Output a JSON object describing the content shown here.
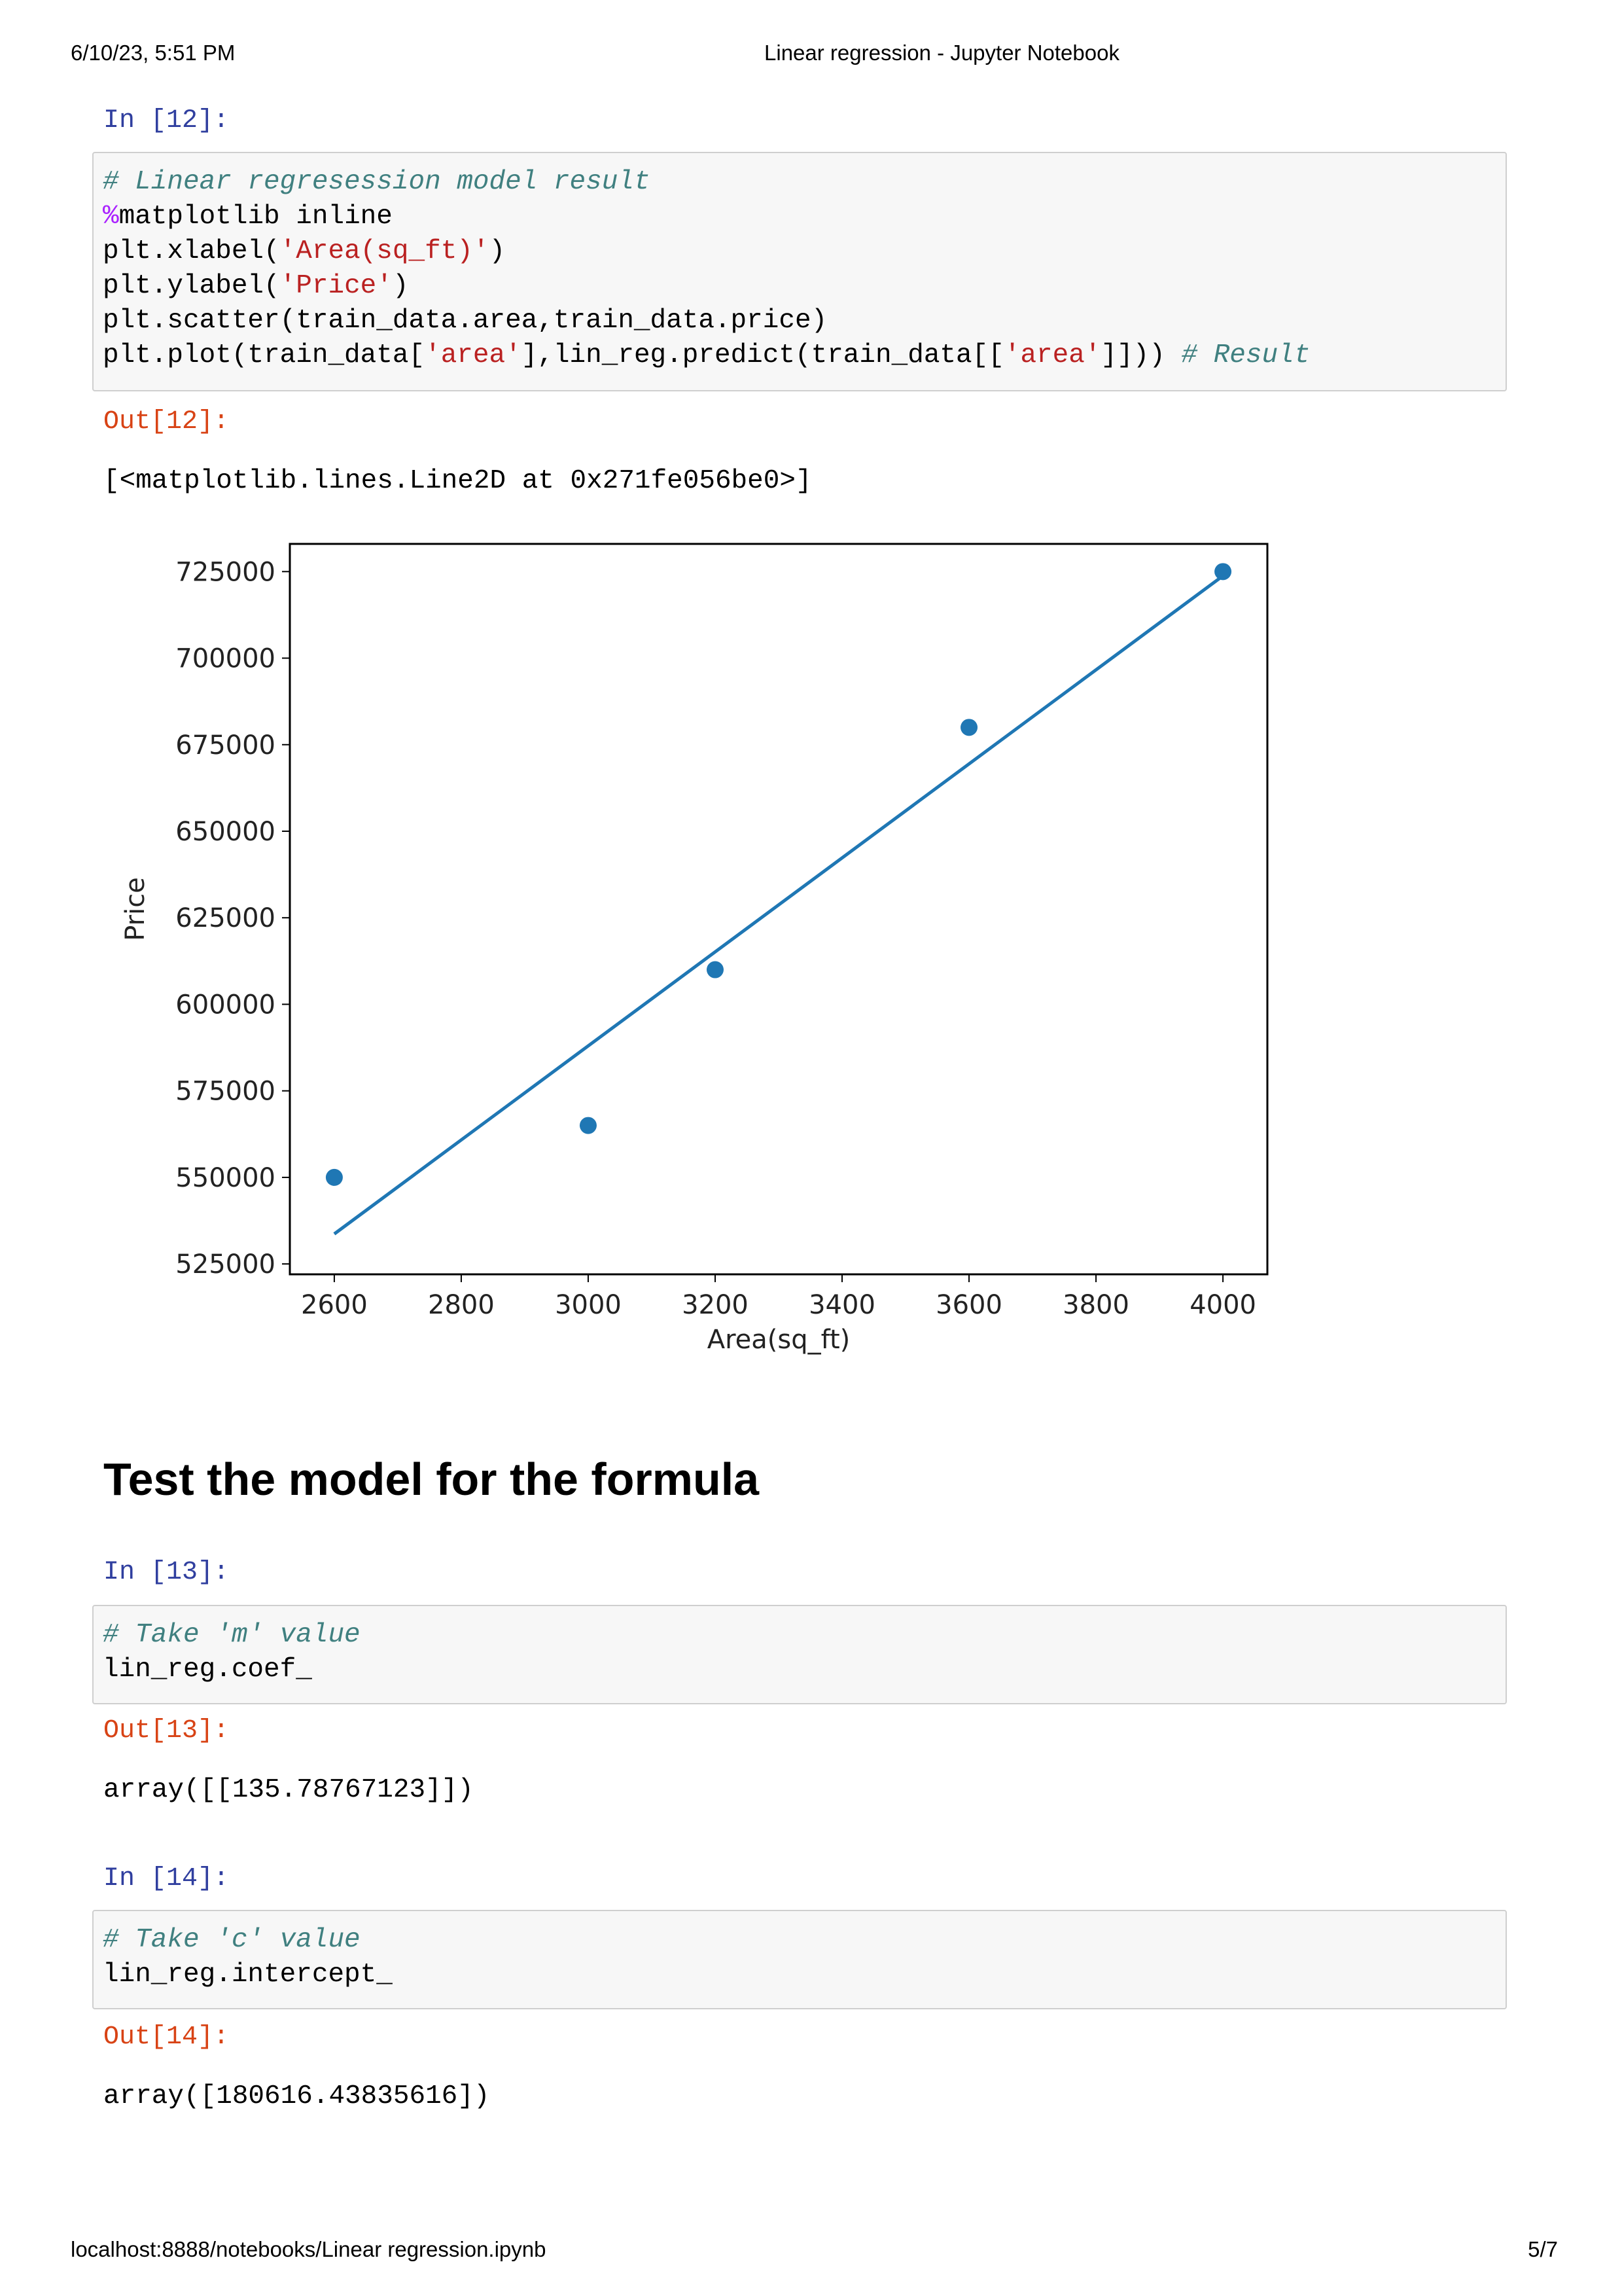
{
  "header": {
    "datetime": "6/10/23, 5:51 PM",
    "title": "Linear regression - Jupyter Notebook"
  },
  "footer": {
    "url": "localhost:8888/notebooks/Linear regression.ipynb",
    "page": "5/7"
  },
  "cells": {
    "c12": {
      "in_prompt": "In [12]:",
      "out_prompt": "Out[12]:",
      "lines": {
        "l1": "# Linear regresession model result",
        "l2_magic": "%",
        "l2_rest": "matplotlib inline",
        "l3_a": "plt.xlabel(",
        "l3_str": "'Area(sq_ft)'",
        "l3_b": ")",
        "l4_a": "plt.ylabel(",
        "l4_str": "'Price'",
        "l4_b": ")",
        "l5": "plt.scatter(train_data.area,train_data.price)",
        "l6_a": "plt.plot(train_data[",
        "l6_str1": "'area'",
        "l6_b": "],lin_reg.predict(train_data[[",
        "l6_str2": "'area'",
        "l6_c": "]])) ",
        "l6_comment": "# Result"
      },
      "output": "[<matplotlib.lines.Line2D at 0x271fe056be0>]"
    },
    "heading": "Test the model for the formula",
    "c13": {
      "in_prompt": "In [13]:",
      "out_prompt": "Out[13]:",
      "lines": {
        "l1": "# Take 'm' value",
        "l2": "lin_reg.coef_"
      },
      "output": "array([[135.78767123]])"
    },
    "c14": {
      "in_prompt": "In [14]:",
      "out_prompt": "Out[14]:",
      "lines": {
        "l1": "# Take 'c' value",
        "l2": "lin_reg.intercept_"
      },
      "output": "array([180616.43835616])"
    }
  },
  "chart_data": {
    "type": "scatter",
    "xlabel": "Area(sq_ft)",
    "ylabel": "Price",
    "xlim": [
      2530,
      4070
    ],
    "ylim": [
      522000,
      733000
    ],
    "xticks": [
      2600,
      2800,
      3000,
      3200,
      3400,
      3600,
      3800,
      4000
    ],
    "yticks": [
      525000,
      550000,
      575000,
      600000,
      625000,
      650000,
      675000,
      700000,
      725000
    ],
    "grid": false,
    "series": [
      {
        "type": "scatter",
        "x": [
          2600,
          3000,
          3200,
          3600,
          4000
        ],
        "y": [
          550000,
          565000,
          610000,
          680000,
          725000
        ],
        "color": "#1f77b4"
      },
      {
        "type": "line",
        "x": [
          2600,
          3000,
          3200,
          3600,
          4000
        ],
        "y": [
          533664,
          587979,
          615137,
          669452,
          723767
        ],
        "color": "#1f77b4"
      }
    ]
  }
}
